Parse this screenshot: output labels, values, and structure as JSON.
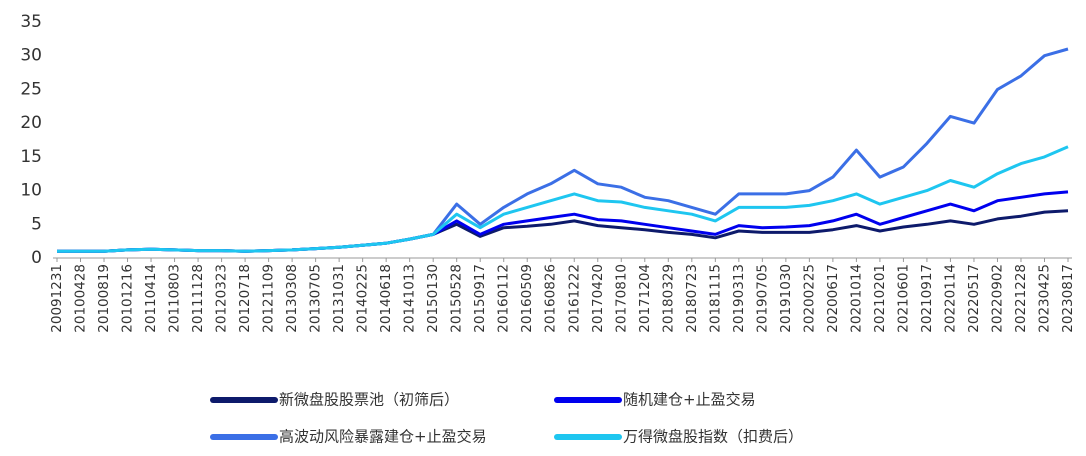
{
  "chart_data": {
    "type": "line",
    "categories": [
      "20091231",
      "20100428",
      "20100819",
      "20101216",
      "20110414",
      "20110803",
      "20111128",
      "20120323",
      "20120718",
      "20121109",
      "20130308",
      "20130705",
      "20131031",
      "20140225",
      "20140618",
      "20141013",
      "20150130",
      "20150528",
      "20150917",
      "20160112",
      "20160509",
      "20160826",
      "20161222",
      "20170420",
      "20170810",
      "20171204",
      "20180329",
      "20180723",
      "20181115",
      "20190313",
      "20190705",
      "20191030",
      "20200225",
      "20200617",
      "20201014",
      "20210201",
      "20210601",
      "20210917",
      "20220114",
      "20220517",
      "20220902",
      "20221228",
      "20230425",
      "20230817"
    ],
    "series": [
      {
        "name": "新微盘股股票池（初筛后）",
        "color": "#0d1a6b",
        "values": [
          1,
          1,
          1,
          1.2,
          1.3,
          1.2,
          1.1,
          1.1,
          1,
          1.1,
          1.2,
          1.4,
          1.6,
          1.9,
          2.2,
          2.8,
          3.5,
          5,
          3.2,
          4.5,
          4.7,
          5,
          5.5,
          4.8,
          4.5,
          4.2,
          3.8,
          3.5,
          3,
          4,
          3.8,
          3.8,
          3.8,
          4.2,
          4.8,
          4,
          4.6,
          5,
          5.5,
          5,
          5.8,
          6.2,
          6.8,
          7
        ]
      },
      {
        "name": "随机建仓+止盈交易",
        "color": "#0000ee",
        "values": [
          1,
          1,
          1,
          1.2,
          1.3,
          1.2,
          1.1,
          1.1,
          1,
          1.1,
          1.2,
          1.4,
          1.6,
          1.9,
          2.2,
          2.8,
          3.5,
          5.5,
          3.5,
          5,
          5.5,
          6,
          6.5,
          5.7,
          5.5,
          5,
          4.5,
          4,
          3.5,
          4.8,
          4.5,
          4.6,
          4.8,
          5.5,
          6.5,
          5,
          6,
          7,
          8,
          7,
          8.5,
          9,
          9.5,
          9.8
        ]
      },
      {
        "name": "高波动风险暴露建仓+止盈交易",
        "color": "#3b6fe6",
        "values": [
          1,
          1,
          1,
          1.2,
          1.3,
          1.2,
          1.1,
          1.1,
          1,
          1.1,
          1.2,
          1.4,
          1.6,
          1.9,
          2.2,
          2.8,
          3.5,
          8,
          5,
          7.5,
          9.5,
          11,
          13,
          11,
          10.5,
          9,
          8.5,
          7.5,
          6.5,
          9.5,
          9.5,
          9.5,
          10,
          12,
          16,
          12,
          13.5,
          17,
          21,
          20,
          25,
          27,
          30,
          31
        ]
      },
      {
        "name": "万得微盘股指数（扣费后）",
        "color": "#1ec6f0",
        "values": [
          1,
          1,
          1,
          1.2,
          1.3,
          1.2,
          1.1,
          1.1,
          1,
          1.1,
          1.2,
          1.4,
          1.6,
          1.9,
          2.2,
          2.8,
          3.5,
          6.5,
          4.5,
          6.5,
          7.5,
          8.5,
          9.5,
          8.5,
          8.3,
          7.5,
          7,
          6.5,
          5.5,
          7.5,
          7.5,
          7.5,
          7.8,
          8.5,
          9.5,
          8,
          9,
          10,
          11.5,
          10.5,
          12.5,
          14,
          15,
          16.5
        ]
      }
    ],
    "ylim": [
      0,
      35
    ],
    "yticks": [
      0,
      5,
      10,
      15,
      20,
      25,
      30,
      35
    ]
  }
}
